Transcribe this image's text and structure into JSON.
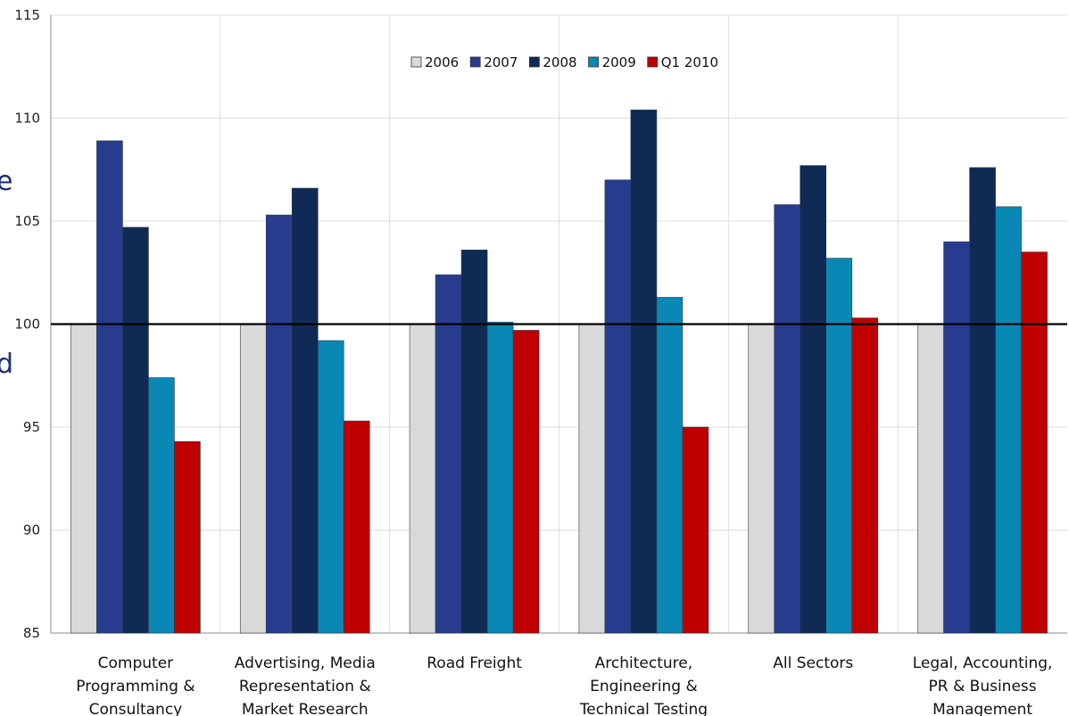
{
  "chart_data": {
    "type": "bar",
    "categories": [
      [
        "Computer",
        "Programming &",
        "Consultancy"
      ],
      [
        "Advertising, Media",
        "Representation &",
        "Market Research"
      ],
      [
        "Road Freight"
      ],
      [
        "Architecture,",
        "Engineering &",
        "Technical Testing"
      ],
      [
        "All Sectors"
      ],
      [
        "Legal, Accounting,",
        "PR & Business",
        "Management"
      ]
    ],
    "series": [
      {
        "name": "2006",
        "color": "#d9d9d9",
        "values": [
          100,
          100,
          100,
          100,
          100,
          100
        ]
      },
      {
        "name": "2007",
        "color": "#283c8f",
        "values": [
          108.9,
          105.3,
          102.4,
          107.0,
          105.8,
          104.0
        ]
      },
      {
        "name": "2008",
        "color": "#0f2a55",
        "values": [
          104.7,
          106.6,
          103.6,
          110.4,
          107.7,
          107.6
        ]
      },
      {
        "name": "2009",
        "color": "#0a88b5",
        "values": [
          97.4,
          99.2,
          100.1,
          101.3,
          103.2,
          105.7
        ]
      },
      {
        "name": "Q1 2010",
        "color": "#c00000",
        "values": [
          94.3,
          95.3,
          99.7,
          95.0,
          100.3,
          103.5
        ]
      }
    ],
    "ylim": [
      85,
      115
    ],
    "yticks": [
      85,
      90,
      95,
      100,
      105,
      110,
      115
    ],
    "reference_line": 100,
    "grid": true,
    "legend_position": "top-center",
    "title": "",
    "xlabel": "",
    "ylabel": ""
  },
  "edge_fragments": [
    "e",
    "d"
  ]
}
